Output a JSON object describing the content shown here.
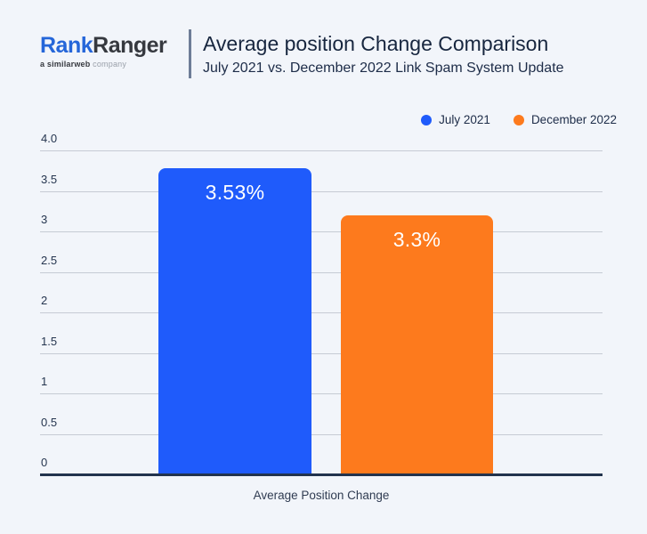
{
  "page": {
    "background_color": "#f2f5fa"
  },
  "header": {
    "logo": {
      "brand_part1": "Rank",
      "brand_part2": "Ranger",
      "tagline_prefix": "a ",
      "tagline_brand": "similarweb",
      "tagline_suffix": " company"
    },
    "title": "Average position Change Comparison",
    "subtitle": "July 2021 vs. December 2022 Link Spam System Update"
  },
  "legend": {
    "items": [
      {
        "label": "July 2021",
        "color": "#1f5bfb"
      },
      {
        "label": "December 2022",
        "color": "#fd7a1d"
      }
    ]
  },
  "chart_data": {
    "type": "bar",
    "title": "Average position Change Comparison",
    "subtitle": "July 2021 vs. December 2022 Link Spam System Update",
    "categories": [
      "Average Position Change"
    ],
    "series": [
      {
        "name": "July 2021",
        "values": [
          3.53
        ],
        "data_label": "3.53%",
        "color": "#1f5bfb",
        "visual_value": 3.78
      },
      {
        "name": "December 2022",
        "values": [
          3.3
        ],
        "data_label": "3.3%",
        "color": "#fd7a1d",
        "visual_value": 3.2
      }
    ],
    "xlabel": "Average Position Change",
    "ylabel": "",
    "ylim": [
      0,
      4
    ],
    "yticks": [
      {
        "value": 4,
        "label": "4.0"
      },
      {
        "value": 3.5,
        "label": "3.5"
      },
      {
        "value": 3,
        "label": "3"
      },
      {
        "value": 2.5,
        "label": "2.5"
      },
      {
        "value": 2,
        "label": "2"
      },
      {
        "value": 1.5,
        "label": "1.5"
      },
      {
        "value": 1,
        "label": "1"
      },
      {
        "value": 0.5,
        "label": "0.5"
      },
      {
        "value": 0,
        "label": "0"
      }
    ],
    "grid": true,
    "legend_position": "top-right",
    "value_unit": "%"
  }
}
